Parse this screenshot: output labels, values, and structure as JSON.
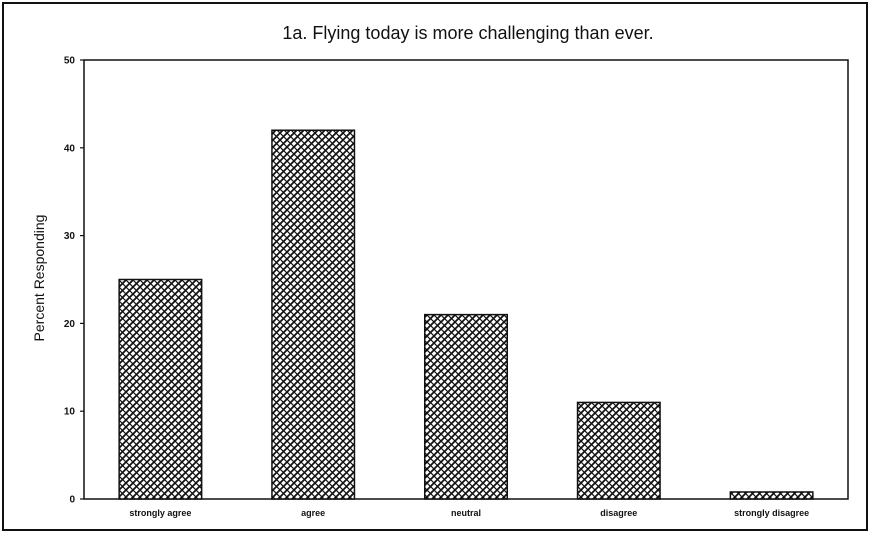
{
  "chart_data": {
    "type": "bar",
    "title": "1a. Flying today is more challenging than ever.",
    "xlabel": "",
    "ylabel": "Percent Responding",
    "categories": [
      "strongly agree",
      "agree",
      "neutral",
      "disagree",
      "strongly disagree"
    ],
    "values": [
      25,
      42,
      21,
      11,
      0.8
    ],
    "ylim": [
      0,
      50
    ],
    "yticks": [
      0,
      10,
      20,
      30,
      40,
      50
    ],
    "grid": false,
    "legend": "none",
    "bar_fill": "cross-hatched black on white"
  },
  "colors": {
    "frame": "#111111",
    "bar_outline": "#111111",
    "background": "#ffffff"
  }
}
